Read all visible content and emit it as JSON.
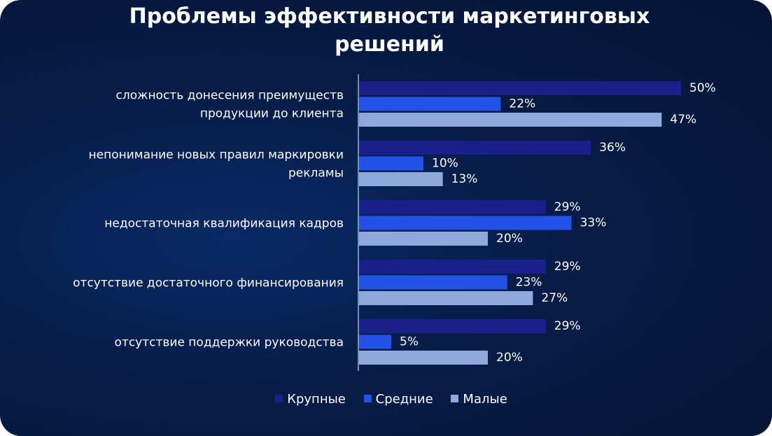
{
  "title_lines": [
    "Проблемы эффективности маркетинговых",
    "решений"
  ],
  "colors": {
    "large": "#1a1f8c",
    "medium": "#2451e6",
    "small": "#8fa9dc",
    "axis": "#c9d4ee"
  },
  "chart_data": {
    "type": "bar",
    "orientation": "horizontal",
    "title": "Проблемы эффективности маркетинговых решений",
    "categories": [
      [
        "сложность донесения преимуществ",
        "продукции до клиента"
      ],
      [
        "непонимание новых правил маркировки",
        "рекламы"
      ],
      [
        "недостаточная квалификация кадров"
      ],
      [
        "отсутствие достаточного финансирования"
      ],
      [
        "отсутствие поддержки руководства"
      ]
    ],
    "series": [
      {
        "name": "Крупные",
        "color": "#1a1f8c",
        "values": [
          50,
          36,
          29,
          29,
          29
        ]
      },
      {
        "name": "Средние",
        "color": "#2451e6",
        "values": [
          22,
          10,
          33,
          23,
          5
        ]
      },
      {
        "name": "Малые",
        "color": "#8fa9dc",
        "values": [
          47,
          13,
          20,
          27,
          20
        ]
      }
    ],
    "value_suffix": "%",
    "xlim": [
      0,
      50
    ],
    "legend_position": "bottom",
    "grid": false
  }
}
